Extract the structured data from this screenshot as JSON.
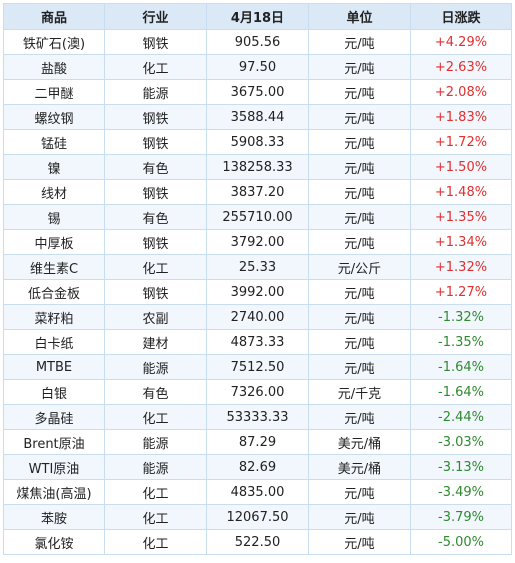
{
  "headers": [
    "商品",
    "行业",
    "4月18日",
    "单位",
    "日涨跌"
  ],
  "rows": [
    {
      "name": "铁矿石(澳)",
      "industry": "钢铁",
      "price": "905.56",
      "unit": "元/吨",
      "change": "+4.29%"
    },
    {
      "name": "盐酸",
      "industry": "化工",
      "price": "97.50",
      "unit": "元/吨",
      "change": "+2.63%"
    },
    {
      "name": "二甲醚",
      "industry": "能源",
      "price": "3675.00",
      "unit": "元/吨",
      "change": "+2.08%"
    },
    {
      "name": "螺纹钢",
      "industry": "钢铁",
      "price": "3588.44",
      "unit": "元/吨",
      "change": "+1.83%"
    },
    {
      "name": "锰硅",
      "industry": "钢铁",
      "price": "5908.33",
      "unit": "元/吨",
      "change": "+1.72%"
    },
    {
      "name": "镍",
      "industry": "有色",
      "price": "138258.33",
      "unit": "元/吨",
      "change": "+1.50%"
    },
    {
      "name": "线材",
      "industry": "钢铁",
      "price": "3837.20",
      "unit": "元/吨",
      "change": "+1.48%"
    },
    {
      "name": "锡",
      "industry": "有色",
      "price": "255710.00",
      "unit": "元/吨",
      "change": "+1.35%"
    },
    {
      "name": "中厚板",
      "industry": "钢铁",
      "price": "3792.00",
      "unit": "元/吨",
      "change": "+1.34%"
    },
    {
      "name": "维生素C",
      "industry": "化工",
      "price": "25.33",
      "unit": "元/公斤",
      "change": "+1.32%"
    },
    {
      "name": "低合金板",
      "industry": "钢铁",
      "price": "3992.00",
      "unit": "元/吨",
      "change": "+1.27%"
    },
    {
      "name": "菜籽粕",
      "industry": "农副",
      "price": "2740.00",
      "unit": "元/吨",
      "change": "-1.32%"
    },
    {
      "name": "白卡纸",
      "industry": "建材",
      "price": "4873.33",
      "unit": "元/吨",
      "change": "-1.35%"
    },
    {
      "name": "MTBE",
      "industry": "能源",
      "price": "7512.50",
      "unit": "元/吨",
      "change": "-1.64%"
    },
    {
      "name": "白银",
      "industry": "有色",
      "price": "7326.00",
      "unit": "元/千克",
      "change": "-1.64%"
    },
    {
      "name": "多晶硅",
      "industry": "化工",
      "price": "53333.33",
      "unit": "元/吨",
      "change": "-2.44%"
    },
    {
      "name": "Brent原油",
      "industry": "能源",
      "price": "87.29",
      "unit": "美元/桶",
      "change": "-3.03%"
    },
    {
      "name": "WTI原油",
      "industry": "能源",
      "price": "82.69",
      "unit": "美元/桶",
      "change": "-3.13%"
    },
    {
      "name": "煤焦油(高温)",
      "industry": "化工",
      "price": "4835.00",
      "unit": "元/吨",
      "change": "-3.49%"
    },
    {
      "name": "苯胺",
      "industry": "化工",
      "price": "12067.50",
      "unit": "元/吨",
      "change": "-3.79%"
    },
    {
      "name": "氯化铵",
      "industry": "化工",
      "price": "522.50",
      "unit": "元/吨",
      "change": "-5.00%"
    }
  ],
  "colors": {
    "up": "#e03030",
    "down": "#2f8a2f",
    "header_bg": "#dbe9f7",
    "stripe_bg": "#f1f7fd",
    "border": "#c9ddf0"
  }
}
